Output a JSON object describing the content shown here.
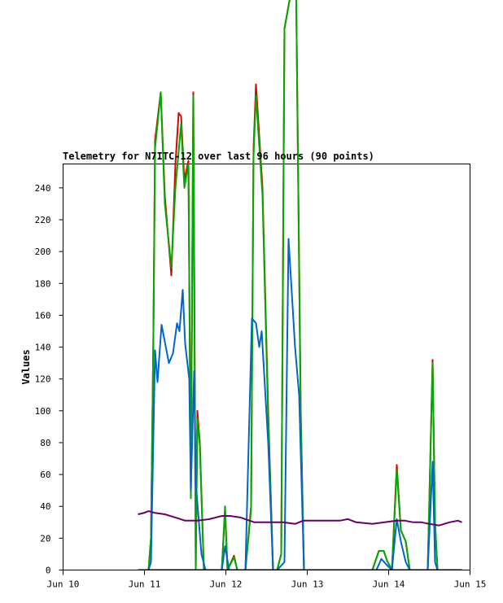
{
  "chart_data": {
    "type": "line",
    "title": "Telemetry for N7ITC-12 over last 96 hours (90 points)",
    "xlabel": "",
    "ylabel": "Values",
    "xlim": [
      "Jun 10",
      "Jun 15"
    ],
    "ylim": [
      0,
      255
    ],
    "x_ticks": [
      "Jun 10",
      "Jun 11",
      "Jun 12",
      "Jun 13",
      "Jun 14",
      "Jun 15"
    ],
    "y_ticks": [
      0,
      20,
      40,
      60,
      80,
      100,
      120,
      140,
      160,
      180,
      200,
      220,
      240
    ],
    "grid": false,
    "series": [
      {
        "color": "#dd0000",
        "points": [
          [
            10.92,
            0
          ],
          [
            11.05,
            0
          ],
          [
            11.08,
            20
          ],
          [
            11.11,
            150
          ],
          [
            11.13,
            270
          ],
          [
            11.2,
            300
          ],
          [
            11.25,
            235
          ],
          [
            11.33,
            185
          ],
          [
            11.38,
            255
          ],
          [
            11.42,
            287
          ],
          [
            11.45,
            285
          ],
          [
            11.49,
            245
          ],
          [
            11.54,
            257
          ],
          [
            11.57,
            50
          ],
          [
            11.6,
            300
          ],
          [
            11.63,
            0
          ],
          [
            11.65,
            100
          ],
          [
            11.68,
            80
          ],
          [
            11.73,
            0
          ],
          [
            11.95,
            0
          ],
          [
            11.99,
            38
          ],
          [
            12.02,
            0
          ],
          [
            12.1,
            9
          ],
          [
            12.14,
            0
          ],
          [
            12.24,
            0
          ],
          [
            12.31,
            40
          ],
          [
            12.34,
            265
          ],
          [
            12.37,
            305
          ],
          [
            12.45,
            240
          ],
          [
            12.52,
            100
          ],
          [
            12.58,
            0
          ],
          [
            12.63,
            0
          ],
          [
            12.68,
            10
          ],
          [
            12.72,
            340
          ],
          [
            12.86,
            380
          ],
          [
            12.92,
            100
          ],
          [
            12.96,
            0
          ],
          [
            13.8,
            0
          ],
          [
            13.88,
            12
          ],
          [
            13.94,
            12
          ],
          [
            13.98,
            6
          ],
          [
            14.04,
            0
          ],
          [
            14.1,
            66
          ],
          [
            14.15,
            25
          ],
          [
            14.21,
            18
          ],
          [
            14.26,
            0
          ],
          [
            14.48,
            0
          ],
          [
            14.54,
            132
          ],
          [
            14.57,
            30
          ],
          [
            14.6,
            0
          ],
          [
            14.65,
            0
          ]
        ]
      },
      {
        "color": "#00aa00",
        "points": [
          [
            10.92,
            0
          ],
          [
            11.05,
            0
          ],
          [
            11.08,
            20
          ],
          [
            11.11,
            148
          ],
          [
            11.13,
            265
          ],
          [
            11.2,
            300
          ],
          [
            11.25,
            230
          ],
          [
            11.33,
            190
          ],
          [
            11.38,
            240
          ],
          [
            11.45,
            280
          ],
          [
            11.49,
            240
          ],
          [
            11.54,
            255
          ],
          [
            11.57,
            45
          ],
          [
            11.6,
            298
          ],
          [
            11.63,
            0
          ],
          [
            11.65,
            95
          ],
          [
            11.68,
            78
          ],
          [
            11.73,
            0
          ],
          [
            11.95,
            0
          ],
          [
            11.99,
            40
          ],
          [
            12.02,
            0
          ],
          [
            12.1,
            8
          ],
          [
            12.14,
            0
          ],
          [
            12.24,
            0
          ],
          [
            12.31,
            38
          ],
          [
            12.34,
            260
          ],
          [
            12.37,
            298
          ],
          [
            12.45,
            235
          ],
          [
            12.52,
            95
          ],
          [
            12.58,
            0
          ],
          [
            12.63,
            0
          ],
          [
            12.68,
            10
          ],
          [
            12.72,
            340
          ],
          [
            12.86,
            380
          ],
          [
            12.92,
            95
          ],
          [
            12.96,
            0
          ],
          [
            13.8,
            0
          ],
          [
            13.88,
            12
          ],
          [
            13.94,
            12
          ],
          [
            13.98,
            6
          ],
          [
            14.04,
            0
          ],
          [
            14.1,
            63
          ],
          [
            14.15,
            25
          ],
          [
            14.21,
            18
          ],
          [
            14.26,
            0
          ],
          [
            14.48,
            0
          ],
          [
            14.54,
            130
          ],
          [
            14.57,
            30
          ],
          [
            14.6,
            0
          ],
          [
            14.65,
            0
          ]
        ]
      },
      {
        "color": "#0066cc",
        "points": [
          [
            10.92,
            0
          ],
          [
            11.05,
            0
          ],
          [
            11.08,
            5
          ],
          [
            11.13,
            138
          ],
          [
            11.16,
            118
          ],
          [
            11.21,
            154
          ],
          [
            11.3,
            130
          ],
          [
            11.35,
            136
          ],
          [
            11.4,
            155
          ],
          [
            11.43,
            150
          ],
          [
            11.47,
            176
          ],
          [
            11.5,
            142
          ],
          [
            11.55,
            120
          ],
          [
            11.57,
            50
          ],
          [
            11.61,
            125
          ],
          [
            11.63,
            55
          ],
          [
            11.7,
            10
          ],
          [
            11.75,
            0
          ],
          [
            11.95,
            0
          ],
          [
            11.99,
            15
          ],
          [
            12.04,
            0
          ],
          [
            12.24,
            0
          ],
          [
            12.32,
            158
          ],
          [
            12.37,
            155
          ],
          [
            12.41,
            140
          ],
          [
            12.44,
            150
          ],
          [
            12.52,
            80
          ],
          [
            12.58,
            0
          ],
          [
            12.63,
            0
          ],
          [
            12.72,
            5
          ],
          [
            12.77,
            208
          ],
          [
            12.85,
            140
          ],
          [
            12.9,
            110
          ],
          [
            12.96,
            0
          ],
          [
            13.85,
            0
          ],
          [
            13.91,
            7
          ],
          [
            13.98,
            3
          ],
          [
            14.04,
            0
          ],
          [
            14.1,
            32
          ],
          [
            14.15,
            18
          ],
          [
            14.21,
            5
          ],
          [
            14.26,
            0
          ],
          [
            14.48,
            0
          ],
          [
            14.54,
            68
          ],
          [
            14.57,
            5
          ],
          [
            14.6,
            0
          ],
          [
            14.65,
            0
          ]
        ]
      },
      {
        "color": "#660066",
        "points": [
          [
            10.92,
            35
          ],
          [
            11.0,
            36
          ],
          [
            11.05,
            37
          ],
          [
            11.12,
            36
          ],
          [
            11.25,
            35
          ],
          [
            11.38,
            33
          ],
          [
            11.5,
            31
          ],
          [
            11.65,
            31
          ],
          [
            11.8,
            32
          ],
          [
            11.95,
            34
          ],
          [
            12.05,
            34
          ],
          [
            12.18,
            33
          ],
          [
            12.35,
            30
          ],
          [
            12.5,
            30
          ],
          [
            12.7,
            30
          ],
          [
            12.85,
            29
          ],
          [
            12.95,
            31
          ],
          [
            13.2,
            31
          ],
          [
            13.4,
            31
          ],
          [
            13.5,
            32
          ],
          [
            13.6,
            30
          ],
          [
            13.8,
            29
          ],
          [
            13.95,
            30
          ],
          [
            14.1,
            31
          ],
          [
            14.2,
            31
          ],
          [
            14.3,
            30
          ],
          [
            14.4,
            30
          ],
          [
            14.5,
            29
          ],
          [
            14.62,
            28
          ],
          [
            14.75,
            30
          ],
          [
            14.85,
            31
          ],
          [
            14.9,
            30
          ]
        ]
      },
      {
        "color": "#000000",
        "points": [
          [
            10.92,
            0
          ],
          [
            14.9,
            0
          ]
        ]
      }
    ]
  }
}
